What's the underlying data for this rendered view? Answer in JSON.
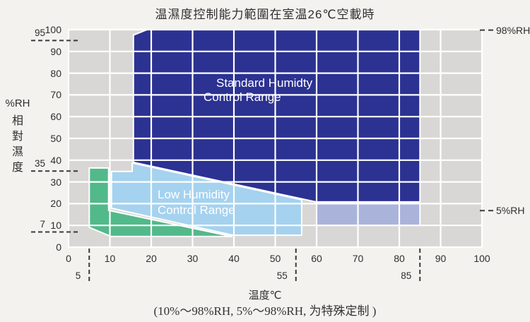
{
  "title": "温濕度控制能力範圍在室温26℃空載時",
  "y_axis": {
    "unit": "%RH",
    "label": "相對濕度",
    "range": [
      0,
      100
    ],
    "ticks": [
      0,
      10,
      20,
      30,
      40,
      50,
      60,
      70,
      80,
      90,
      100
    ],
    "special_marks": [
      95,
      35,
      7
    ]
  },
  "x_axis": {
    "label": "温度℃",
    "range": [
      0,
      100
    ],
    "ticks": [
      0,
      10,
      20,
      30,
      40,
      50,
      60,
      70,
      80,
      90,
      100
    ],
    "special_marks": [
      5,
      55,
      85
    ]
  },
  "right_annotations": [
    {
      "label": "98%RH",
      "dash_at_rh": 99.8
    },
    {
      "label": "5%RH",
      "dash_at_rh": 16.8
    }
  ],
  "footer_note": "(10%～98%RH, 5%～98%RH, 为特殊定制 )",
  "colors": {
    "standard_region": "#2c3292",
    "low_region": "#a5d2ef",
    "green_region": "#52b98a",
    "option_region": "#aab3da",
    "grid_cell": "#d8d7d5",
    "gridline": "#ffffff",
    "dash": "#3a3a3a"
  },
  "chart_data": {
    "type": "area",
    "title": "温濕度控制能力範圍在室温26℃空載時",
    "xlabel": "温度℃",
    "ylabel": "%RH 相對濕度",
    "x_range": [
      0,
      100
    ],
    "y_range": [
      0,
      100
    ],
    "grid": true,
    "regions": [
      {
        "id": "standard-humidity-range",
        "label_lines": [
          "Standard  Humidty",
          "Control Range"
        ],
        "color": "#2c3292",
        "points_t_rh": [
          [
            15.7,
            97.5
          ],
          [
            19,
            100
          ],
          [
            85,
            100
          ],
          [
            85,
            20.8
          ],
          [
            59.8,
            20.8
          ],
          [
            15.7,
            39
          ]
        ]
      },
      {
        "id": "low-humidity-range",
        "label_lines": [
          "Low Humidity",
          "Control Range"
        ],
        "color": "#a5d2ef",
        "points_t_rh": [
          [
            10.4,
            34.8
          ],
          [
            15.4,
            34.8
          ],
          [
            15.4,
            38.7
          ],
          [
            56.4,
            21.8
          ],
          [
            56.4,
            5.5
          ],
          [
            39.8,
            5.5
          ],
          [
            10.4,
            17.9
          ]
        ]
      },
      {
        "id": "green-extended-low-range",
        "label_lines": [],
        "color": "#52b98a",
        "points_t_rh": [
          [
            5,
            36.4
          ],
          [
            9.7,
            36.4
          ],
          [
            9.7,
            16.9
          ],
          [
            39.5,
            4.9
          ],
          [
            10.3,
            4.9
          ],
          [
            5,
            9.1
          ]
        ]
      },
      {
        "id": "option-5rh-range",
        "label_lines": [],
        "color": "#aab3da",
        "points_t_rh": [
          [
            60,
            20
          ],
          [
            85,
            20
          ],
          [
            85,
            10
          ],
          [
            60,
            10
          ]
        ]
      }
    ]
  }
}
